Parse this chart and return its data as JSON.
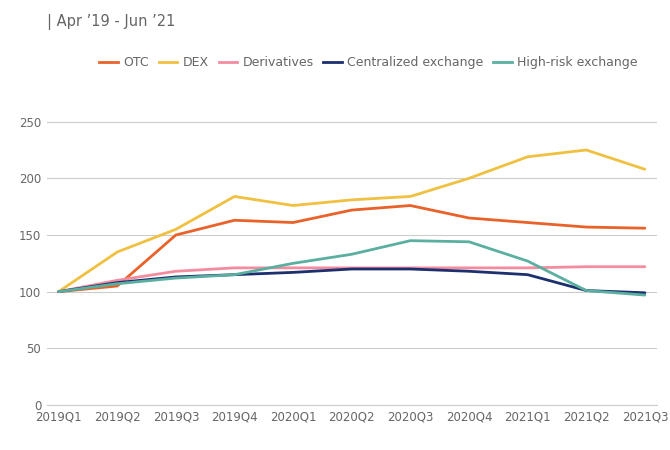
{
  "title": "| Apr ’19 - Jun ’21",
  "x_labels": [
    "2019Q1",
    "2019Q2",
    "2019Q3",
    "2019Q4",
    "2020Q1",
    "2020Q2",
    "2020Q3",
    "2020Q4",
    "2021Q1",
    "2021Q2",
    "2021Q3"
  ],
  "series": {
    "OTC": {
      "values": [
        100,
        105,
        150,
        163,
        161,
        172,
        176,
        165,
        161,
        157,
        156
      ],
      "color": "#e8622a",
      "linewidth": 2.0
    },
    "DEX": {
      "values": [
        100,
        135,
        155,
        184,
        176,
        181,
        184,
        200,
        219,
        225,
        208
      ],
      "color": "#f0c040",
      "linewidth": 2.0
    },
    "Derivatives": {
      "values": [
        100,
        110,
        118,
        121,
        121,
        121,
        121,
        121,
        121,
        122,
        122
      ],
      "color": "#f48ca0",
      "linewidth": 2.0
    },
    "Centralized exchange": {
      "values": [
        100,
        108,
        113,
        115,
        117,
        120,
        120,
        118,
        115,
        101,
        99
      ],
      "color": "#1c2f6e",
      "linewidth": 2.0
    },
    "High-risk exchange": {
      "values": [
        100,
        107,
        112,
        115,
        125,
        133,
        145,
        144,
        127,
        101,
        97
      ],
      "color": "#5aafa0",
      "linewidth": 2.0
    }
  },
  "ylim": [
    0,
    270
  ],
  "yticks": [
    0,
    50,
    100,
    150,
    200,
    250
  ],
  "background_color": "#ffffff",
  "grid_color": "#cccccc",
  "title_fontsize": 10.5,
  "legend_fontsize": 9,
  "tick_fontsize": 8.5
}
